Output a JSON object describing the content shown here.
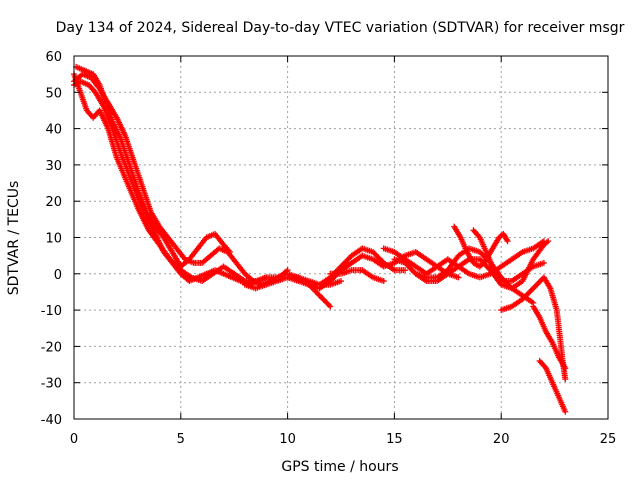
{
  "chart_data": {
    "type": "scatter",
    "title": "Day 134 of 2024, Sidereal Day-to-day VTEC variation (SDTVAR) for receiver msgr",
    "xlabel": "GPS time / hours",
    "ylabel": "SDTVAR / TECUs",
    "xlim": [
      0,
      25
    ],
    "ylim": [
      -40,
      60
    ],
    "xticks": [
      0,
      5,
      10,
      15,
      20,
      25
    ],
    "yticks": [
      -40,
      -30,
      -20,
      -10,
      0,
      10,
      20,
      30,
      40,
      50,
      60
    ],
    "grid": true,
    "marker": "plus",
    "color": "#ff0000",
    "series": [
      {
        "name": "trace-1",
        "points": [
          [
            0.0,
            55
          ],
          [
            0.3,
            50
          ],
          [
            0.6,
            45
          ],
          [
            0.9,
            43
          ],
          [
            1.2,
            45
          ],
          [
            1.6,
            40
          ],
          [
            2.0,
            32
          ],
          [
            2.5,
            25
          ],
          [
            3.0,
            18
          ],
          [
            3.5,
            12
          ],
          [
            4.0,
            8
          ],
          [
            4.5,
            4
          ],
          [
            5.0,
            1
          ],
          [
            5.5,
            -1
          ],
          [
            6.0,
            -2
          ],
          [
            6.5,
            0
          ],
          [
            7.0,
            2
          ],
          [
            7.5,
            0
          ],
          [
            8.0,
            -2
          ]
        ]
      },
      {
        "name": "trace-2",
        "points": [
          [
            0.1,
            57
          ],
          [
            0.5,
            56
          ],
          [
            0.9,
            55
          ],
          [
            1.2,
            52
          ],
          [
            1.5,
            47
          ],
          [
            1.8,
            42
          ],
          [
            2.2,
            37
          ],
          [
            2.6,
            30
          ],
          [
            3.0,
            23
          ],
          [
            3.4,
            17
          ],
          [
            3.8,
            13
          ],
          [
            4.2,
            10
          ],
          [
            4.6,
            6
          ],
          [
            5.0,
            2
          ],
          [
            5.4,
            4
          ],
          [
            5.8,
            7
          ],
          [
            6.2,
            10
          ],
          [
            6.6,
            11
          ],
          [
            7.0,
            8
          ],
          [
            7.3,
            6
          ]
        ]
      },
      {
        "name": "trace-3",
        "points": [
          [
            0.0,
            53
          ],
          [
            0.4,
            55
          ],
          [
            0.8,
            54
          ],
          [
            1.2,
            51
          ],
          [
            1.6,
            47
          ],
          [
            2.0,
            43
          ],
          [
            2.4,
            38
          ],
          [
            2.8,
            31
          ],
          [
            3.2,
            24
          ],
          [
            3.6,
            17
          ],
          [
            4.0,
            13
          ],
          [
            4.4,
            10
          ],
          [
            4.8,
            7
          ],
          [
            5.2,
            4
          ],
          [
            5.6,
            3
          ],
          [
            6.0,
            3
          ],
          [
            6.4,
            5
          ],
          [
            6.8,
            7
          ],
          [
            7.2,
            6
          ],
          [
            7.6,
            3
          ],
          [
            8.0,
            0
          ],
          [
            8.4,
            -2
          ],
          [
            8.8,
            -3
          ],
          [
            9.2,
            -2
          ],
          [
            9.6,
            -1
          ],
          [
            10.0,
            1
          ]
        ]
      },
      {
        "name": "trace-4",
        "points": [
          [
            0.0,
            52
          ],
          [
            0.3,
            53
          ],
          [
            0.7,
            52
          ],
          [
            1.0,
            50
          ],
          [
            1.4,
            46
          ],
          [
            1.8,
            40
          ],
          [
            2.2,
            33
          ],
          [
            2.6,
            27
          ],
          [
            3.0,
            21
          ],
          [
            3.4,
            16
          ],
          [
            3.8,
            11
          ],
          [
            4.2,
            6
          ],
          [
            4.6,
            3
          ],
          [
            5.0,
            0
          ],
          [
            5.4,
            -2
          ],
          [
            5.8,
            -1
          ],
          [
            6.2,
            0
          ],
          [
            6.6,
            1
          ],
          [
            7.0,
            0
          ],
          [
            7.4,
            -1
          ],
          [
            7.8,
            -2
          ],
          [
            8.2,
            -3
          ],
          [
            8.6,
            -2
          ],
          [
            9.0,
            -1
          ]
        ]
      },
      {
        "name": "trace-5",
        "points": [
          [
            8.0,
            -2
          ],
          [
            8.5,
            -2
          ],
          [
            9.0,
            -1
          ],
          [
            9.5,
            -1
          ],
          [
            10.0,
            0
          ],
          [
            10.5,
            -1
          ],
          [
            11.0,
            -3
          ],
          [
            11.5,
            -6
          ],
          [
            12.0,
            -9
          ]
        ]
      },
      {
        "name": "trace-6",
        "points": [
          [
            8.0,
            -3
          ],
          [
            8.5,
            -4
          ],
          [
            9.0,
            -3
          ],
          [
            9.5,
            -2
          ],
          [
            10.0,
            -1
          ],
          [
            10.5,
            -1
          ],
          [
            11.0,
            -2
          ],
          [
            11.5,
            -3
          ],
          [
            12.0,
            -3
          ],
          [
            12.5,
            -2
          ]
        ]
      },
      {
        "name": "trace-7",
        "points": [
          [
            10.5,
            -1
          ],
          [
            11.0,
            -3
          ],
          [
            11.5,
            -3
          ],
          [
            12.0,
            -1
          ],
          [
            12.5,
            2
          ],
          [
            13.0,
            5
          ],
          [
            13.5,
            7
          ],
          [
            14.0,
            6
          ],
          [
            14.5,
            3
          ],
          [
            15.0,
            1
          ],
          [
            15.5,
            1
          ]
        ]
      },
      {
        "name": "trace-8",
        "points": [
          [
            10.0,
            -1
          ],
          [
            10.5,
            -2
          ],
          [
            11.0,
            -3
          ],
          [
            11.5,
            -4
          ],
          [
            12.0,
            -2
          ],
          [
            12.5,
            1
          ],
          [
            13.0,
            3
          ],
          [
            13.5,
            5
          ],
          [
            14.0,
            4
          ],
          [
            14.5,
            2
          ],
          [
            15.0,
            3
          ],
          [
            15.5,
            5
          ],
          [
            16.0,
            6
          ],
          [
            16.5,
            4
          ],
          [
            17.0,
            2
          ],
          [
            17.5,
            0
          ],
          [
            18.0,
            -1
          ]
        ]
      },
      {
        "name": "trace-9",
        "points": [
          [
            12.0,
            0
          ],
          [
            12.5,
            0
          ],
          [
            13.0,
            1
          ],
          [
            13.5,
            1
          ],
          [
            14.0,
            -1
          ],
          [
            14.5,
            -2
          ]
        ]
      },
      {
        "name": "trace-10",
        "points": [
          [
            15.0,
            4
          ],
          [
            15.5,
            3
          ],
          [
            16.0,
            0
          ],
          [
            16.5,
            -2
          ],
          [
            17.0,
            -2
          ],
          [
            17.5,
            0
          ],
          [
            18.0,
            2
          ],
          [
            18.5,
            4
          ],
          [
            19.0,
            4
          ],
          [
            19.5,
            1
          ],
          [
            20.0,
            -3
          ],
          [
            20.5,
            -4
          ],
          [
            21.0,
            -2
          ],
          [
            21.5,
            4
          ],
          [
            22.0,
            8
          ],
          [
            22.2,
            9
          ]
        ]
      },
      {
        "name": "trace-11",
        "points": [
          [
            14.5,
            7
          ],
          [
            15.0,
            6
          ],
          [
            15.5,
            4
          ],
          [
            16.0,
            2
          ],
          [
            16.5,
            0
          ],
          [
            17.0,
            2
          ],
          [
            17.5,
            4
          ],
          [
            18.0,
            2
          ],
          [
            18.5,
            0
          ],
          [
            19.0,
            -1
          ],
          [
            19.5,
            0
          ],
          [
            20.0,
            2
          ],
          [
            20.5,
            4
          ],
          [
            21.0,
            6
          ],
          [
            21.5,
            7
          ],
          [
            22.0,
            9
          ]
        ]
      },
      {
        "name": "trace-12",
        "points": [
          [
            16.0,
            0
          ],
          [
            16.5,
            -1
          ],
          [
            17.0,
            -1
          ],
          [
            17.5,
            1
          ],
          [
            18.0,
            5
          ],
          [
            18.5,
            7
          ],
          [
            19.0,
            6
          ],
          [
            19.5,
            3
          ],
          [
            20.0,
            -1
          ],
          [
            20.5,
            -4
          ],
          [
            21.0,
            -6
          ],
          [
            21.5,
            -8
          ]
        ]
      },
      {
        "name": "trace-13",
        "points": [
          [
            18.7,
            12
          ],
          [
            19.0,
            10
          ],
          [
            19.3,
            6
          ],
          [
            19.6,
            2
          ],
          [
            20.0,
            -2
          ],
          [
            20.5,
            -2
          ],
          [
            21.0,
            0
          ],
          [
            21.5,
            2
          ],
          [
            22.0,
            3
          ]
        ]
      },
      {
        "name": "trace-14",
        "points": [
          [
            17.8,
            13
          ],
          [
            18.1,
            10
          ],
          [
            18.4,
            6
          ],
          [
            18.7,
            3
          ],
          [
            19.0,
            2
          ],
          [
            19.3,
            4
          ],
          [
            19.6,
            7
          ],
          [
            19.9,
            10
          ],
          [
            20.1,
            11
          ],
          [
            20.3,
            9
          ]
        ]
      },
      {
        "name": "trace-15",
        "points": [
          [
            20.0,
            -10
          ],
          [
            20.5,
            -9
          ],
          [
            21.0,
            -7
          ],
          [
            21.5,
            -4
          ],
          [
            22.0,
            -1
          ],
          [
            22.3,
            -4
          ],
          [
            22.6,
            -10
          ],
          [
            22.9,
            -25
          ],
          [
            23.0,
            -29
          ]
        ]
      },
      {
        "name": "trace-16",
        "points": [
          [
            21.5,
            -9
          ],
          [
            21.8,
            -12
          ],
          [
            22.1,
            -16
          ],
          [
            22.4,
            -19
          ],
          [
            22.7,
            -23
          ],
          [
            23.0,
            -26
          ]
        ]
      },
      {
        "name": "trace-17",
        "points": [
          [
            21.8,
            -24
          ],
          [
            22.1,
            -26
          ],
          [
            22.4,
            -30
          ],
          [
            22.7,
            -34
          ],
          [
            23.0,
            -38
          ]
        ]
      }
    ]
  }
}
